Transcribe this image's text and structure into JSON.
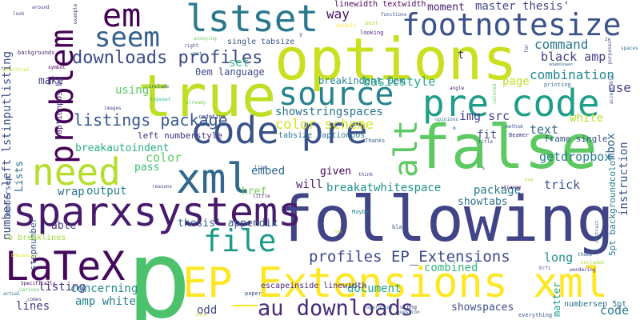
{
  "words": [
    {
      "text": "p",
      "color": "#4cc26c"
    },
    {
      "text": "following",
      "color": "#414487"
    },
    {
      "text": "options",
      "color": "#c8e020"
    },
    {
      "text": "false",
      "color": "#5ec962"
    },
    {
      "text": "true",
      "color": "#bddf26"
    },
    {
      "text": "EP_Extensions xml",
      "color": "#fde725"
    },
    {
      "text": "LaTeX",
      "color": "#46085c"
    },
    {
      "text": "sparxsystems",
      "color": "#481a6c"
    },
    {
      "text": "code pre",
      "color": "#3b528b"
    },
    {
      "text": "pre code",
      "color": "#1f9e89"
    },
    {
      "text": "problem",
      "color": "#440154"
    },
    {
      "text": "source",
      "color": "#26828e"
    },
    {
      "text": "xml",
      "color": "#31688e"
    },
    {
      "text": "need",
      "color": "#b5de2b"
    },
    {
      "text": "lstset",
      "color": "#2a788e"
    },
    {
      "text": "em",
      "color": "#440154"
    },
    {
      "text": "seem",
      "color": "#355f8d"
    },
    {
      "text": "footnotesize",
      "color": "#3b528b"
    },
    {
      "text": "file",
      "color": "#1f9a8a"
    },
    {
      "text": "alt",
      "color": "#5ec962"
    },
    {
      "text": "au downloads",
      "color": "#472c7a"
    },
    {
      "text": "profiles EP_Extensions",
      "color": "#3e4989"
    },
    {
      "text": "downloads profiles",
      "color": "#3e4a89"
    },
    {
      "text": "listings package",
      "color": "#38588c"
    },
    {
      "text": "numbers left lstinputlisting",
      "color": "#3d4d8a"
    },
    {
      "text": "showstringspaces",
      "color": "#2c728e"
    },
    {
      "text": "breakatwhitespace",
      "color": "#21918c"
    },
    {
      "text": "color scheme",
      "color": "#d2e21b"
    },
    {
      "text": "command",
      "color": "#2a778e"
    },
    {
      "text": "black amp",
      "color": "#433e85"
    },
    {
      "text": "img src",
      "color": "#424186"
    },
    {
      "text": "combination",
      "color": "#23898e"
    },
    {
      "text": "basicstyle",
      "color": "#22a884"
    },
    {
      "text": "breakindent 0em",
      "color": "#24868e"
    },
    {
      "text": "0em language",
      "color": "#3e4a89"
    },
    {
      "text": "breakautoindent",
      "color": "#29af7f"
    },
    {
      "text": "left numberstyle",
      "color": "#472f7d"
    },
    {
      "text": "getdropbox",
      "color": "#26818e"
    },
    {
      "text": "thesis' appendix",
      "color": "#34618d"
    },
    {
      "text": "master thesis'",
      "color": "#3f4788"
    },
    {
      "text": "moment",
      "color": "#482173"
    },
    {
      "text": "way",
      "color": "#471365"
    },
    {
      "text": "instruction",
      "color": "#3b528b"
    },
    {
      "text": "mbox",
      "color": "#2f6b8e"
    },
    {
      "text": "text",
      "color": "#31688e"
    },
    {
      "text": "white",
      "color": "#b8de29"
    },
    {
      "text": "use",
      "color": "#433e85"
    },
    {
      "text": "page",
      "color": "#c0df25"
    },
    {
      "text": "set",
      "color": "#35b779"
    },
    {
      "text": "using",
      "color": "#5ac864"
    },
    {
      "text": "color",
      "color": "#5ec962"
    },
    {
      "text": "pass",
      "color": "#3aba76"
    },
    {
      "text": "output",
      "color": "#26818e"
    },
    {
      "text": "href",
      "color": "#6ece58"
    },
    {
      "text": "embed",
      "color": "#31688e"
    },
    {
      "text": "given",
      "color": "#440154"
    },
    {
      "text": "will",
      "color": "#481b6d"
    },
    {
      "text": "package",
      "color": "#297a8e"
    },
    {
      "text": "trick",
      "color": "#3b528b"
    },
    {
      "text": "showtabs",
      "color": "#2d718e"
    },
    {
      "text": "wrap",
      "color": "#2c728e"
    },
    {
      "text": "able",
      "color": "#46337e"
    },
    {
      "text": "Lists",
      "color": "#2e6f8e"
    },
    {
      "text": "make",
      "color": "#3f4788"
    },
    {
      "text": "listing",
      "color": "#453882"
    },
    {
      "text": "concerning",
      "color": "#23898e"
    },
    {
      "text": "amp white",
      "color": "#277f8e"
    },
    {
      "text": "lines",
      "color": "#443a83"
    },
    {
      "text": "odd",
      "color": "#3e4989"
    },
    {
      "text": "document",
      "color": "#20a386"
    },
    {
      "text": "combined",
      "color": "#34b679"
    },
    {
      "text": "long",
      "color": "#21918c"
    },
    {
      "text": "matter",
      "color": "#1fa188"
    },
    {
      "text": "code",
      "color": "#2a788e"
    },
    {
      "text": "fit",
      "color": "#3b528b"
    },
    {
      "text": "t",
      "color": "#443983"
    },
    {
      "text": "showspaces",
      "color": "#3e4a89"
    },
    {
      "text": "numbersep 5pt",
      "color": "#2e6e8e"
    },
    {
      "text": "frame single",
      "color": "#3b528b"
    },
    {
      "text": "5pt backgroundcolor",
      "color": "#287c8e"
    },
    {
      "text": "escapeinside linewidth",
      "color": "#482878"
    },
    {
      "text": "tabsize captionpos",
      "color": "#2a788e"
    },
    {
      "text": "linewidth textwidth",
      "color": "#440154"
    },
    {
      "text": "single tabsize",
      "color": "#3b528b"
    },
    {
      "text": "stepnumber",
      "color": "#39568c"
    },
    {
      "text": "b breaklines",
      "color": "#9fda3a"
    },
    {
      "text": "numbersep",
      "color": "#3d4e8a"
    },
    {
      "text": "captionpos b",
      "color": "#472c7a"
    },
    {
      "text": "backgrounds",
      "color": "#482475"
    },
    {
      "text": "redefine",
      "color": "#3f4889"
    },
    {
      "text": "printing",
      "color": "#2f6c8e"
    },
    {
      "text": "Maybe",
      "color": "#21908d"
    },
    {
      "text": "black",
      "color": "#3b528b"
    },
    {
      "text": "u png",
      "color": "#3f4889"
    },
    {
      "text": "paper",
      "color": "#3e4a89"
    },
    {
      "text": "theme",
      "color": "#32658e"
    },
    {
      "text": "Thanks",
      "color": "#355e8d"
    },
    {
      "text": "everything",
      "color": "#3a548c"
    },
    {
      "text": "question",
      "color": "#2f6c8e"
    },
    {
      "text": "Beamer",
      "color": "#463480"
    },
    {
      "text": "angle",
      "color": "#481769"
    },
    {
      "text": "included",
      "color": "#a8db34"
    },
    {
      "text": "colored",
      "color": "#5cc863"
    },
    {
      "text": "functions",
      "color": "#3c4f8a"
    },
    {
      "text": "looking",
      "color": "#482677"
    },
    {
      "text": "best",
      "color": "#b0dd2f"
    },
    {
      "text": "default",
      "color": "#fde725"
    },
    {
      "text": "around",
      "color": "#433d84"
    },
    {
      "text": "look",
      "color": "#3f4788"
    },
    {
      "text": "example",
      "color": "#482979"
    },
    {
      "text": "want",
      "color": "#32648e"
    },
    {
      "text": "annoying",
      "color": "#6ccd5a"
    },
    {
      "text": "right",
      "color": "#3b528b"
    },
    {
      "text": "purposes",
      "color": "#3e4989"
    },
    {
      "text": "acceptable",
      "color": "#3c4f8a"
    },
    {
      "text": "spaces",
      "color": "#2a788e"
    },
    {
      "text": "2e",
      "color": "#3b528b"
    },
    {
      "text": "adamsbowen",
      "color": "#31688e"
    },
    {
      "text": "method",
      "color": "#3c508b"
    },
    {
      "text": "title",
      "color": "#3f4788"
    },
    {
      "text": "opinions",
      "color": "#2c718e"
    },
    {
      "text": "images",
      "color": "#3d4d8a"
    },
    {
      "text": "typeset",
      "color": "#35b779"
    },
    {
      "text": "already",
      "color": "#6ece58"
    },
    {
      "text": "include",
      "color": "#31688e"
    },
    {
      "text": "symbol",
      "color": "#440154"
    },
    {
      "text": "practical",
      "color": "#c2df23"
    },
    {
      "text": "new",
      "color": "#b5de2b"
    },
    {
      "text": "little",
      "color": "#482173"
    },
    {
      "text": "reasons",
      "color": "#3e4989"
    },
    {
      "text": "contrast",
      "color": "#2c728e"
    },
    {
      "text": "wondering",
      "color": "#482878"
    },
    {
      "text": "Erfi",
      "color": "#3b528b"
    },
    {
      "text": "operation",
      "color": "#31688e"
    },
    {
      "text": "Specifically",
      "color": "#440154"
    },
    {
      "text": "various",
      "color": "#5ec962"
    },
    {
      "text": "EPExtension",
      "color": "#d8e219"
    },
    {
      "text": "actual",
      "color": "#2c728e"
    },
    {
      "text": "comes",
      "color": "#433e85"
    },
    {
      "text": "think",
      "color": "#3e4989"
    },
    {
      "text": "strange",
      "color": "#440154"
    },
    {
      "text": "sup",
      "color": "#a8db34"
    },
    {
      "text": "line",
      "color": "#3b528b"
    },
    {
      "text": "s",
      "color": "#2a788e"
    },
    {
      "text": "y",
      "color": "#3b528b"
    },
    {
      "text": "for",
      "color": "#3e4989"
    },
    {
      "text": "m",
      "color": "#31688e"
    },
    {
      "text": "sure",
      "color": "#c8e020"
    }
  ]
}
